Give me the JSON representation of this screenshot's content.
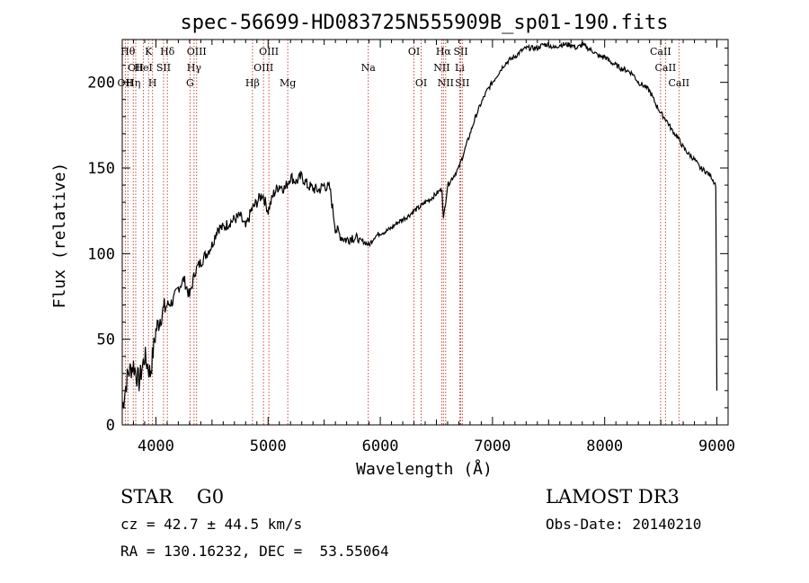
{
  "chart_data": {
    "type": "line",
    "title": "spec-56699-HD083725N555909B_sp01-190.fits",
    "xlabel": "Wavelength (Å)",
    "ylabel": "Flux (relative)",
    "xlim": [
      3700,
      9100
    ],
    "ylim": [
      0,
      225
    ],
    "xticks": [
      4000,
      5000,
      6000,
      7000,
      8000,
      9000
    ],
    "yticks": [
      0,
      50,
      100,
      150,
      200
    ],
    "grid": false,
    "series": [
      {
        "name": "spectrum",
        "x": [
          3700,
          3750,
          3800,
          3850,
          3900,
          3950,
          4000,
          4050,
          4100,
          4150,
          4200,
          4250,
          4300,
          4350,
          4400,
          4450,
          4500,
          4550,
          4600,
          4650,
          4700,
          4750,
          4800,
          4850,
          4900,
          4950,
          5000,
          5050,
          5100,
          5150,
          5200,
          5250,
          5300,
          5350,
          5400,
          5450,
          5500,
          5550,
          5600,
          5650,
          5700,
          5750,
          5800,
          5850,
          5900,
          5950,
          6000,
          6050,
          6100,
          6150,
          6200,
          6250,
          6300,
          6350,
          6400,
          6450,
          6500,
          6550,
          6563,
          6600,
          6650,
          6700,
          6750,
          6800,
          6850,
          6900,
          6950,
          7000,
          7050,
          7100,
          7150,
          7200,
          7250,
          7300,
          7350,
          7400,
          7450,
          7500,
          7550,
          7600,
          7650,
          7700,
          7750,
          7800,
          7850,
          7900,
          7950,
          8000,
          8050,
          8100,
          8150,
          8200,
          8250,
          8300,
          8350,
          8400,
          8450,
          8500,
          8550,
          8600,
          8650,
          8700,
          8750,
          8800,
          8850,
          8900,
          8950,
          8990,
          9000
        ],
        "y": [
          10,
          30,
          35,
          25,
          40,
          30,
          55,
          65,
          70,
          72,
          80,
          85,
          75,
          90,
          95,
          100,
          105,
          115,
          115,
          118,
          120,
          122,
          115,
          125,
          130,
          135,
          125,
          135,
          140,
          138,
          145,
          142,
          145,
          140,
          138,
          137,
          140,
          138,
          115,
          110,
          108,
          110,
          108,
          107,
          105,
          110,
          112,
          113,
          115,
          118,
          120,
          122,
          125,
          127,
          130,
          132,
          135,
          138,
          120,
          140,
          145,
          150,
          160,
          170,
          180,
          188,
          195,
          200,
          205,
          210,
          213,
          215,
          218,
          220,
          220,
          220,
          222,
          222,
          220,
          222,
          222,
          222,
          220,
          222,
          220,
          218,
          215,
          215,
          212,
          210,
          208,
          207,
          205,
          200,
          198,
          195,
          188,
          182,
          178,
          172,
          168,
          162,
          158,
          155,
          150,
          148,
          145,
          140,
          20
        ]
      }
    ],
    "lines": [
      {
        "wave": 3727,
        "label": "OII",
        "row": 2
      },
      {
        "wave": 3750,
        "label": "Hθ",
        "row": 0
      },
      {
        "wave": 3798,
        "label": "Hη",
        "row": 2
      },
      {
        "wave": 3820,
        "label": "OII",
        "row": 1
      },
      {
        "wave": 3889,
        "label": "HeI",
        "row": 1
      },
      {
        "wave": 3934,
        "label": "K",
        "row": 0
      },
      {
        "wave": 3970,
        "label": "H",
        "row": 2
      },
      {
        "wave": 4068,
        "label": "SII",
        "row": 1
      },
      {
        "wave": 4102,
        "label": "Hδ",
        "row": 0
      },
      {
        "wave": 4304,
        "label": "G",
        "row": 2
      },
      {
        "wave": 4340,
        "label": "Hγ",
        "row": 1
      },
      {
        "wave": 4363,
        "label": "OIII",
        "row": 0
      },
      {
        "wave": 4861,
        "label": "Hβ",
        "row": 2
      },
      {
        "wave": 4959,
        "label": "OIII",
        "row": 1
      },
      {
        "wave": 5007,
        "label": "OIII",
        "row": 0
      },
      {
        "wave": 5175,
        "label": "Mg",
        "row": 2
      },
      {
        "wave": 5893,
        "label": "Na",
        "row": 1
      },
      {
        "wave": 6300,
        "label": "OI",
        "row": 0
      },
      {
        "wave": 6364,
        "label": "OI",
        "row": 2
      },
      {
        "wave": 6548,
        "label": "NII",
        "row": 1
      },
      {
        "wave": 6563,
        "label": "Hα",
        "row": 0
      },
      {
        "wave": 6583,
        "label": "NII",
        "row": 2
      },
      {
        "wave": 6708,
        "label": "Li",
        "row": 1
      },
      {
        "wave": 6717,
        "label": "SII",
        "row": 0
      },
      {
        "wave": 6731,
        "label": "SII",
        "row": 2
      },
      {
        "wave": 8498,
        "label": "CaII",
        "row": 0
      },
      {
        "wave": 8542,
        "label": "CaII",
        "row": 1
      },
      {
        "wave": 8662,
        "label": "CaII",
        "row": 2
      }
    ]
  },
  "info": {
    "class_line": "STAR    G0",
    "survey": "LAMOST DR3",
    "redshift": "cz = 42.7 ± 44.5 km/s",
    "obs_date": "Obs-Date: 20140210",
    "coords": "RA = 130.16232, DEC =  53.55064"
  }
}
